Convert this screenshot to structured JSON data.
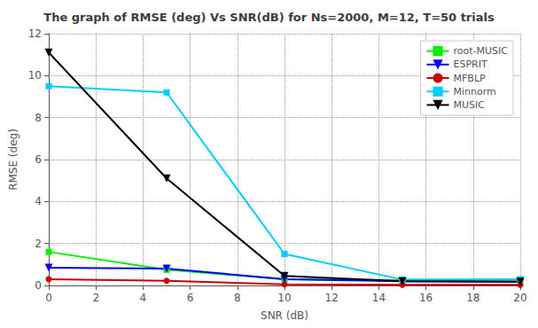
{
  "chart_data": {
    "type": "line",
    "title": "The graph of RMSE (deg) Vs SNR(dB) for Ns=2000, M=12, T=50 trials",
    "xlabel": "SNR (dB)",
    "ylabel": "RMSE (deg)",
    "x": [
      0,
      5,
      10,
      15,
      20
    ],
    "series": [
      {
        "name": "root-MUSIC",
        "color": "#00ee00",
        "marker": "square",
        "values": [
          1.6,
          0.75,
          0.3,
          0.25,
          0.28
        ]
      },
      {
        "name": "ESPRIT",
        "color": "#0000ff",
        "marker": "triangle-down",
        "values": [
          0.85,
          0.8,
          0.3,
          0.2,
          0.18
        ]
      },
      {
        "name": "MFBLP",
        "color": "#cc0000",
        "marker": "circle",
        "values": [
          0.3,
          0.22,
          0.05,
          0.03,
          0.03
        ]
      },
      {
        "name": "Minnorm",
        "color": "#00ccff",
        "marker": "square",
        "values": [
          9.5,
          9.2,
          1.5,
          0.28,
          0.3
        ]
      },
      {
        "name": "MUSIC",
        "color": "#000000",
        "marker": "triangle-down",
        "values": [
          11.1,
          5.1,
          0.45,
          0.2,
          0.18
        ]
      }
    ],
    "xlim": [
      0,
      20
    ],
    "ylim": [
      0,
      12
    ],
    "xticks": [
      0,
      2,
      4,
      6,
      8,
      10,
      12,
      14,
      16,
      18,
      20
    ],
    "yticks": [
      0,
      2,
      4,
      6,
      8,
      10,
      12
    ],
    "grid": true,
    "legend": "upper right"
  }
}
